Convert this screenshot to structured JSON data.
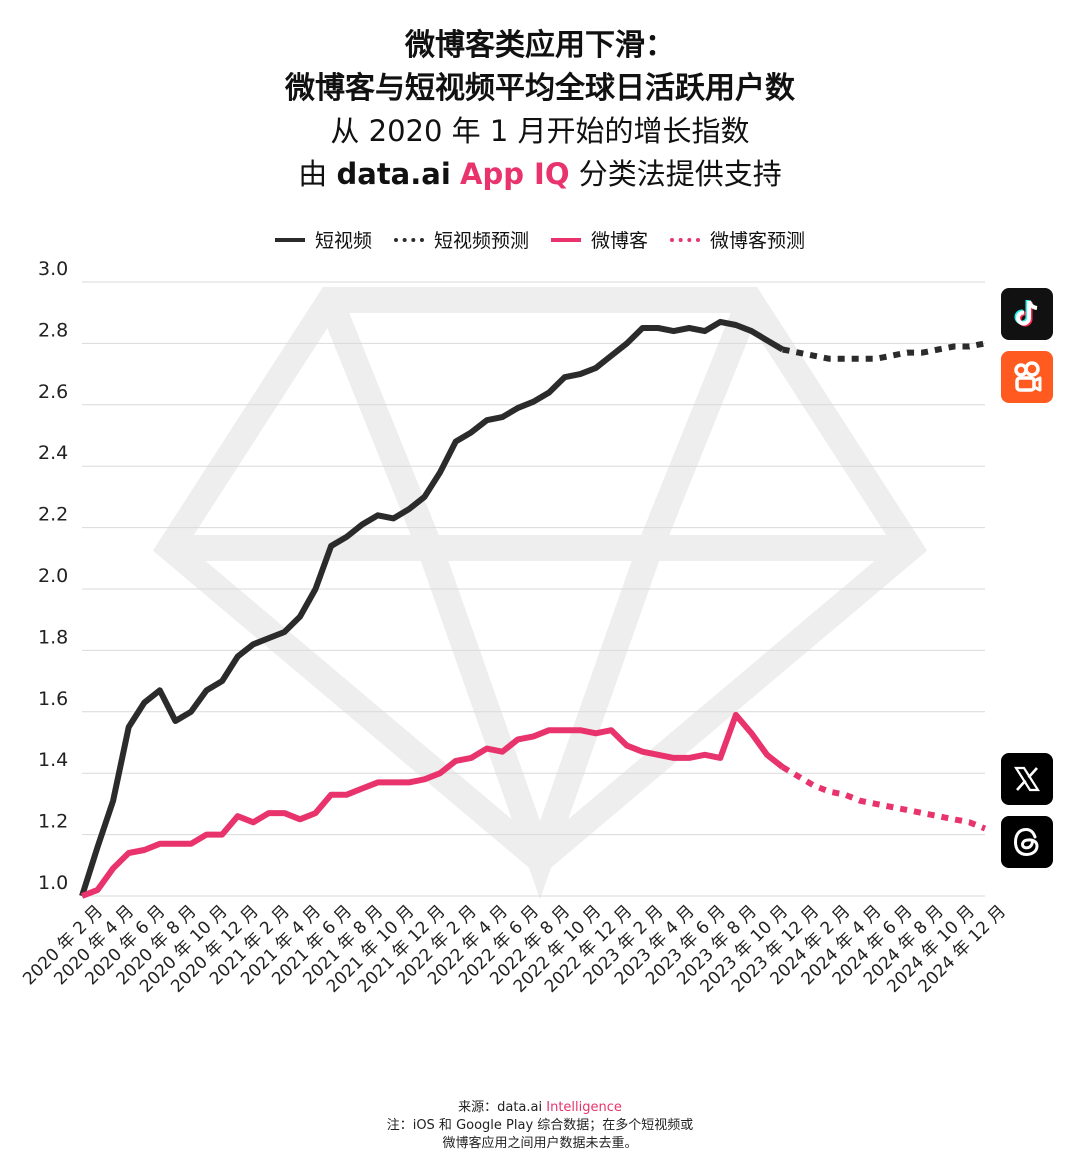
{
  "header": {
    "title_line1": "微博客类应用下滑：",
    "title_line2": "微博客与短视频平均全球日活跃用户数",
    "subtitle_line1": "从 2020 年 1 月开始的增长指数",
    "subtitle_prefix": "由",
    "subtitle_brand": "data.ai",
    "subtitle_accent": "App IQ",
    "subtitle_suffix": "分类法提供支持"
  },
  "legend": [
    {
      "label": "短视频",
      "color": "#2b2b2b",
      "style": "solid"
    },
    {
      "label": "短视频预测",
      "color": "#2b2b2b",
      "style": "dotted"
    },
    {
      "label": "微博客",
      "color": "#e8336d",
      "style": "solid"
    },
    {
      "label": "微博客预测",
      "color": "#e8336d",
      "style": "dotted"
    }
  ],
  "icons": {
    "top": [
      "tiktok-icon",
      "kuaishou-icon"
    ],
    "bottom": [
      "x-twitter-icon",
      "threads-icon"
    ]
  },
  "colors": {
    "short_video": "#2b2b2b",
    "microblog": "#e8336d",
    "grid": "#d9d9d9",
    "watermark": "#eeeeee"
  },
  "chart_data": {
    "type": "line",
    "ylim": [
      1.0,
      3.0
    ],
    "yticks": [
      "1.0",
      "1.2",
      "1.4",
      "1.6",
      "1.8",
      "2.0",
      "2.2",
      "2.4",
      "2.6",
      "2.8",
      "3.0"
    ],
    "x_tick_labels": [
      "2020 年 2 月",
      "2020 年 4 月",
      "2020 年 6 月",
      "2020 年 8 月",
      "2020 年 10 月",
      "2020 年 12 月",
      "2021 年 2 月",
      "2021 年 4 月",
      "2021 年 6 月",
      "2021 年 8 月",
      "2021 年 10 月",
      "2021 年 12 月",
      "2022 年 2 月",
      "2022 年 4 月",
      "2022 年 6 月",
      "2022 年 8 月",
      "2022 年 10 月",
      "2022 年 12 月",
      "2023 年 2 月",
      "2023 年 4 月",
      "2023 年 6 月",
      "2023 年 8 月",
      "2023 年 10 月",
      "2023 年 12 月",
      "2024 年 2 月",
      "2024 年 4 月",
      "2024 年 6 月",
      "2024 年 8 月",
      "2024 年 10 月",
      "2024 年 12 月"
    ],
    "x_start": "2020-01",
    "grid": true,
    "legend_position": "top",
    "series": [
      {
        "name": "短视频",
        "values": [
          1.0,
          1.16,
          1.31,
          1.55,
          1.63,
          1.67,
          1.57,
          1.6,
          1.67,
          1.7,
          1.78,
          1.82,
          1.84,
          1.86,
          1.91,
          2.0,
          2.14,
          2.17,
          2.21,
          2.24,
          2.23,
          2.26,
          2.3,
          2.38,
          2.48,
          2.51,
          2.55,
          2.56,
          2.59,
          2.61,
          2.64,
          2.69,
          2.7,
          2.72,
          2.76,
          2.8,
          2.85,
          2.85,
          2.84,
          2.85,
          2.84,
          2.87,
          2.86,
          2.84,
          2.81,
          2.78
        ]
      },
      {
        "name": "短视频预测",
        "start_index": 45,
        "values": [
          2.78,
          2.77,
          2.76,
          2.75,
          2.75,
          2.75,
          2.75,
          2.76,
          2.77,
          2.77,
          2.78,
          2.79,
          2.79,
          2.8
        ]
      },
      {
        "name": "微博客",
        "values": [
          1.0,
          1.02,
          1.09,
          1.14,
          1.15,
          1.17,
          1.17,
          1.17,
          1.2,
          1.2,
          1.26,
          1.24,
          1.27,
          1.27,
          1.25,
          1.27,
          1.33,
          1.33,
          1.35,
          1.37,
          1.37,
          1.37,
          1.38,
          1.4,
          1.44,
          1.45,
          1.48,
          1.47,
          1.51,
          1.52,
          1.54,
          1.54,
          1.54,
          1.53,
          1.54,
          1.49,
          1.47,
          1.46,
          1.45,
          1.45,
          1.46,
          1.45,
          1.59,
          1.53,
          1.46,
          1.42
        ]
      },
      {
        "name": "微博客预测",
        "start_index": 45,
        "values": [
          1.42,
          1.39,
          1.36,
          1.34,
          1.33,
          1.31,
          1.3,
          1.29,
          1.28,
          1.27,
          1.26,
          1.25,
          1.24,
          1.22
        ]
      }
    ]
  },
  "footer": {
    "source_prefix": "来源：",
    "source_brand": "data.ai",
    "source_accent": "Intelligence",
    "note_line1": "注：iOS 和 Google Play 综合数据；在多个短视频或",
    "note_line2": "微博客应用之间用户数据未去重。"
  }
}
